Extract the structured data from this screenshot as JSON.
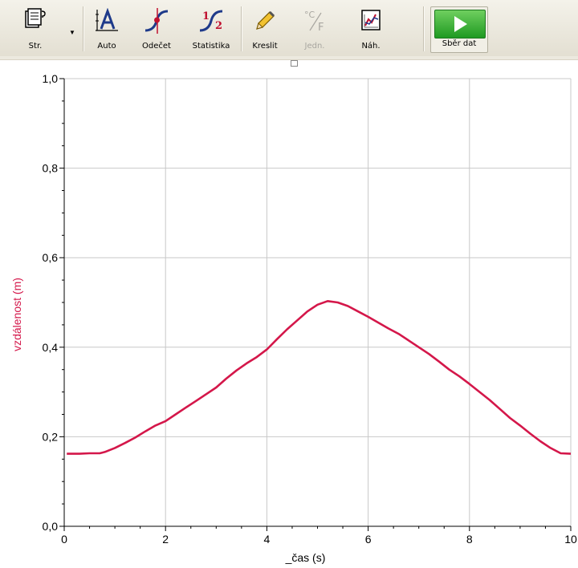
{
  "toolbar": {
    "buttons": [
      {
        "label": "Str.",
        "icon": "page-icon"
      },
      {
        "label": "Auto",
        "icon": "autoscale-icon"
      },
      {
        "label": "Odečet",
        "icon": "examine-icon"
      },
      {
        "label": "Statistika",
        "icon": "statistics-icon"
      },
      {
        "label": "Kreslit",
        "icon": "pencil-icon"
      },
      {
        "label": "Jedn.",
        "icon": "units-icon"
      },
      {
        "label": "Náh.",
        "icon": "preview-icon"
      }
    ],
    "collect_label": "Sběr dat",
    "units_glyph": {
      "deg": "°C",
      "f": "F"
    },
    "stats_glyph": {
      "one": "1",
      "two": "2"
    }
  },
  "chart_data": {
    "type": "line",
    "xlabel": "_čas (s)",
    "ylabel": "vzdálenost (m)",
    "xlim": [
      0,
      10
    ],
    "ylim": [
      0,
      1.0
    ],
    "x_ticks": [
      "0",
      "2",
      "4",
      "6",
      "8",
      "10"
    ],
    "y_ticks": [
      "0,0",
      "0,2",
      "0,4",
      "0,6",
      "0,8",
      "1,0"
    ],
    "grid": true,
    "line_color": "#d4174a",
    "ylabel_color": "#d4174a",
    "series": [
      {
        "x": [
          0.05,
          0.3,
          0.5,
          0.7,
          0.8,
          1.0,
          1.2,
          1.4,
          1.6,
          1.8,
          2.0,
          2.2,
          2.4,
          2.6,
          2.8,
          3.0,
          3.2,
          3.4,
          3.6,
          3.8,
          4.0,
          4.2,
          4.4,
          4.6,
          4.8,
          5.0,
          5.2,
          5.4,
          5.6,
          5.8,
          6.0,
          6.2,
          6.4,
          6.6,
          6.8,
          7.0,
          7.2,
          7.4,
          7.6,
          7.8,
          8.0,
          8.2,
          8.4,
          8.6,
          8.8,
          9.0,
          9.2,
          9.4,
          9.6,
          9.8,
          10.0
        ],
        "y": [
          0.162,
          0.162,
          0.163,
          0.163,
          0.166,
          0.175,
          0.186,
          0.198,
          0.212,
          0.225,
          0.235,
          0.25,
          0.265,
          0.28,
          0.295,
          0.31,
          0.33,
          0.348,
          0.364,
          0.378,
          0.395,
          0.418,
          0.44,
          0.46,
          0.48,
          0.495,
          0.503,
          0.5,
          0.492,
          0.48,
          0.468,
          0.455,
          0.442,
          0.43,
          0.415,
          0.4,
          0.385,
          0.368,
          0.35,
          0.335,
          0.318,
          0.3,
          0.282,
          0.262,
          0.242,
          0.225,
          0.207,
          0.19,
          0.175,
          0.163,
          0.162
        ]
      }
    ]
  }
}
